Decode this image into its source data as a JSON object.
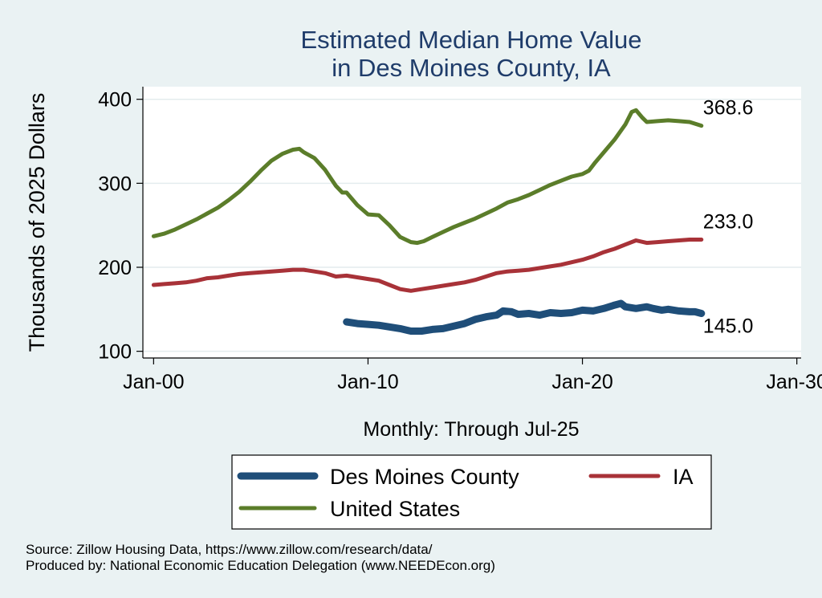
{
  "chart_data": {
    "type": "line",
    "title": [
      "Estimated Median Home Value",
      "in Des Moines County, IA"
    ],
    "xlabel": "Monthly: Through Jul-25",
    "ylabel": "Thousands of 2025 Dollars",
    "x_ticks": [
      "Jan-00",
      "Jan-10",
      "Jan-20",
      "Jan-30"
    ],
    "y_ticks": [
      100,
      200,
      300,
      400
    ],
    "ylim": [
      92,
      415
    ],
    "xlim": [
      1999.5,
      2030.2
    ],
    "grid": true,
    "legend_position": "bottom",
    "series": [
      {
        "name": "Des Moines County",
        "color": "#1f4e79",
        "end_label": "145.0",
        "points": [
          [
            2009.0,
            135
          ],
          [
            2009.5,
            133
          ],
          [
            2010.0,
            132
          ],
          [
            2010.5,
            131
          ],
          [
            2011.0,
            129
          ],
          [
            2011.5,
            127
          ],
          [
            2012.0,
            124
          ],
          [
            2012.5,
            124
          ],
          [
            2013.0,
            126
          ],
          [
            2013.5,
            127
          ],
          [
            2014.0,
            130
          ],
          [
            2014.5,
            133
          ],
          [
            2015.0,
            138
          ],
          [
            2015.5,
            141
          ],
          [
            2016.0,
            143
          ],
          [
            2016.3,
            148
          ],
          [
            2016.7,
            147
          ],
          [
            2017.0,
            144
          ],
          [
            2017.5,
            145
          ],
          [
            2018.0,
            143
          ],
          [
            2018.5,
            146
          ],
          [
            2019.0,
            145
          ],
          [
            2019.5,
            146
          ],
          [
            2020.0,
            149
          ],
          [
            2020.5,
            148
          ],
          [
            2021.0,
            151
          ],
          [
            2021.5,
            155
          ],
          [
            2021.8,
            157
          ],
          [
            2022.0,
            153
          ],
          [
            2022.5,
            151
          ],
          [
            2023.0,
            153
          ],
          [
            2023.3,
            151
          ],
          [
            2023.7,
            149
          ],
          [
            2024.0,
            150
          ],
          [
            2024.5,
            148
          ],
          [
            2025.0,
            147
          ],
          [
            2025.25,
            147
          ],
          [
            2025.55,
            145
          ]
        ]
      },
      {
        "name": "IA",
        "color": "#a83238",
        "end_label": "233.0",
        "points": [
          [
            2000.0,
            179
          ],
          [
            2000.5,
            180
          ],
          [
            2001.0,
            181
          ],
          [
            2001.5,
            182
          ],
          [
            2002.0,
            184
          ],
          [
            2002.5,
            187
          ],
          [
            2003.0,
            188
          ],
          [
            2003.5,
            190
          ],
          [
            2004.0,
            192
          ],
          [
            2004.5,
            193
          ],
          [
            2005.0,
            194
          ],
          [
            2005.5,
            195
          ],
          [
            2006.0,
            196
          ],
          [
            2006.5,
            197
          ],
          [
            2007.0,
            197
          ],
          [
            2007.5,
            195
          ],
          [
            2008.0,
            193
          ],
          [
            2008.5,
            189
          ],
          [
            2009.0,
            190
          ],
          [
            2009.5,
            188
          ],
          [
            2010.0,
            186
          ],
          [
            2010.5,
            184
          ],
          [
            2011.0,
            179
          ],
          [
            2011.5,
            174
          ],
          [
            2012.0,
            172
          ],
          [
            2012.5,
            174
          ],
          [
            2013.0,
            176
          ],
          [
            2013.5,
            178
          ],
          [
            2014.0,
            180
          ],
          [
            2014.5,
            182
          ],
          [
            2015.0,
            185
          ],
          [
            2015.5,
            189
          ],
          [
            2016.0,
            193
          ],
          [
            2016.5,
            195
          ],
          [
            2017.0,
            196
          ],
          [
            2017.5,
            197
          ],
          [
            2018.0,
            199
          ],
          [
            2018.5,
            201
          ],
          [
            2019.0,
            203
          ],
          [
            2019.5,
            206
          ],
          [
            2020.0,
            209
          ],
          [
            2020.5,
            213
          ],
          [
            2021.0,
            218
          ],
          [
            2021.5,
            222
          ],
          [
            2022.0,
            227
          ],
          [
            2022.5,
            232
          ],
          [
            2023.0,
            229
          ],
          [
            2023.5,
            230
          ],
          [
            2024.0,
            231
          ],
          [
            2024.5,
            232
          ],
          [
            2025.0,
            233
          ],
          [
            2025.55,
            233
          ]
        ]
      },
      {
        "name": "United States",
        "color": "#5b7d2a",
        "end_label": "368.6",
        "points": [
          [
            2000.0,
            237
          ],
          [
            2000.5,
            240
          ],
          [
            2001.0,
            245
          ],
          [
            2001.5,
            251
          ],
          [
            2002.0,
            257
          ],
          [
            2002.5,
            264
          ],
          [
            2003.0,
            271
          ],
          [
            2003.5,
            280
          ],
          [
            2004.0,
            290
          ],
          [
            2004.5,
            302
          ],
          [
            2005.0,
            315
          ],
          [
            2005.5,
            327
          ],
          [
            2006.0,
            335
          ],
          [
            2006.5,
            340
          ],
          [
            2006.8,
            341
          ],
          [
            2007.0,
            337
          ],
          [
            2007.5,
            330
          ],
          [
            2008.0,
            316
          ],
          [
            2008.5,
            297
          ],
          [
            2008.8,
            289
          ],
          [
            2009.0,
            289
          ],
          [
            2009.5,
            274
          ],
          [
            2010.0,
            263
          ],
          [
            2010.5,
            262
          ],
          [
            2011.0,
            250
          ],
          [
            2011.5,
            236
          ],
          [
            2012.0,
            230
          ],
          [
            2012.3,
            229
          ],
          [
            2012.6,
            231
          ],
          [
            2013.0,
            236
          ],
          [
            2013.5,
            242
          ],
          [
            2014.0,
            248
          ],
          [
            2014.5,
            253
          ],
          [
            2015.0,
            258
          ],
          [
            2015.5,
            264
          ],
          [
            2016.0,
            270
          ],
          [
            2016.5,
            277
          ],
          [
            2017.0,
            281
          ],
          [
            2017.5,
            286
          ],
          [
            2018.0,
            292
          ],
          [
            2018.5,
            298
          ],
          [
            2019.0,
            303
          ],
          [
            2019.5,
            308
          ],
          [
            2020.0,
            311
          ],
          [
            2020.3,
            315
          ],
          [
            2020.6,
            325
          ],
          [
            2021.0,
            337
          ],
          [
            2021.5,
            352
          ],
          [
            2022.0,
            370
          ],
          [
            2022.3,
            385
          ],
          [
            2022.5,
            387
          ],
          [
            2022.8,
            378
          ],
          [
            2023.0,
            373
          ],
          [
            2023.5,
            374
          ],
          [
            2024.0,
            375
          ],
          [
            2024.5,
            374
          ],
          [
            2025.0,
            373
          ],
          [
            2025.55,
            368.6
          ]
        ]
      }
    ]
  },
  "legend": {
    "entries": [
      {
        "label": "Des Moines County",
        "color": "#1f4e79"
      },
      {
        "label": "IA",
        "color": "#a83238"
      },
      {
        "label": "United States",
        "color": "#5b7d2a"
      }
    ]
  },
  "footer": {
    "source": "Source: Zillow Housing Data, https://www.zillow.com/research/data/",
    "producer": "Produced by: National Economic Education Delegation (www.NEEDEcon.org)"
  }
}
